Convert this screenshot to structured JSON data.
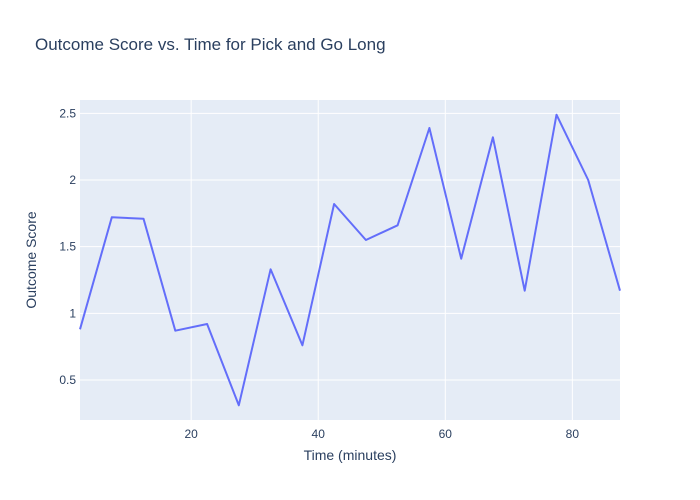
{
  "chart_data": {
    "type": "line",
    "title": "Outcome Score vs. Time for Pick and Go Long",
    "xlabel": "Time (minutes)",
    "ylabel": "Outcome Score",
    "xlim": [
      2.5,
      87.5
    ],
    "ylim": [
      0.2,
      2.6
    ],
    "xticks": [
      20,
      40,
      60,
      80
    ],
    "yticks": [
      0.5,
      1,
      1.5,
      2,
      2.5
    ],
    "xtick_labels": [
      "20",
      "40",
      "60",
      "80"
    ],
    "ytick_labels": [
      "0.5",
      "1",
      "1.5",
      "2",
      "2.5"
    ],
    "grid": true,
    "line_color": "#636efa",
    "plot_bg": "#e5ecf6",
    "x": [
      2.5,
      7.5,
      12.5,
      17.5,
      22.5,
      27.5,
      32.5,
      37.5,
      42.5,
      47.5,
      52.5,
      57.5,
      62.5,
      67.5,
      72.5,
      77.5,
      82.5,
      87.5
    ],
    "series": [
      {
        "values": [
          0.88,
          1.72,
          1.71,
          0.87,
          0.92,
          0.31,
          1.33,
          0.76,
          1.82,
          1.55,
          1.66,
          2.39,
          1.41,
          2.32,
          1.17,
          2.49,
          2.0,
          1.17
        ]
      }
    ]
  }
}
